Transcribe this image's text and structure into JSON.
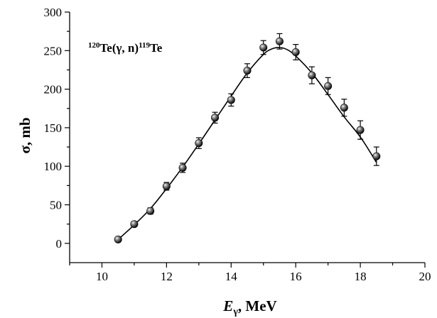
{
  "chart_data": {
    "type": "scatter",
    "annotation": {
      "mass_target": "120",
      "reaction": "Te(γ, n)",
      "mass_product": "119",
      "product": "Te"
    },
    "xlabel": {
      "symbol": "E",
      "subscript": "γ",
      "unit": ", MeV"
    },
    "ylabel": "σ, mb",
    "xlim": [
      9,
      20
    ],
    "ylim": [
      -25,
      300
    ],
    "x_ticks": [
      "10",
      "12",
      "14",
      "16",
      "18",
      "20"
    ],
    "y_ticks": [
      "0",
      "50",
      "100",
      "150",
      "200",
      "250",
      "300"
    ],
    "grid": false,
    "series": [
      {
        "marker": "sphere",
        "points": [
          {
            "x": 10.5,
            "y": 5,
            "err": 0
          },
          {
            "x": 11.0,
            "y": 25,
            "err": 0
          },
          {
            "x": 11.5,
            "y": 42,
            "err": 4
          },
          {
            "x": 12.0,
            "y": 74,
            "err": 5
          },
          {
            "x": 12.5,
            "y": 98,
            "err": 6
          },
          {
            "x": 13.0,
            "y": 130,
            "err": 7
          },
          {
            "x": 13.5,
            "y": 163,
            "err": 7
          },
          {
            "x": 14.0,
            "y": 186,
            "err": 8
          },
          {
            "x": 14.5,
            "y": 224,
            "err": 9
          },
          {
            "x": 15.0,
            "y": 254,
            "err": 9
          },
          {
            "x": 15.5,
            "y": 262,
            "err": 10
          },
          {
            "x": 16.0,
            "y": 248,
            "err": 10
          },
          {
            "x": 16.5,
            "y": 218,
            "err": 11
          },
          {
            "x": 17.0,
            "y": 204,
            "err": 11
          },
          {
            "x": 17.5,
            "y": 176,
            "err": 11
          },
          {
            "x": 18.0,
            "y": 147,
            "err": 12
          },
          {
            "x": 18.5,
            "y": 113,
            "err": 12
          }
        ]
      }
    ],
    "fit_curve": {
      "x": [
        10.5,
        11.0,
        11.5,
        12.0,
        12.5,
        13.0,
        13.5,
        14.0,
        14.5,
        15.0,
        15.25,
        15.5,
        15.75,
        16.0,
        16.5,
        17.0,
        17.5,
        18.0,
        18.5
      ],
      "y": [
        5,
        24,
        45,
        71,
        99,
        129,
        160,
        191,
        221,
        245,
        252,
        254,
        251,
        243,
        221,
        193,
        164,
        138,
        105
      ]
    }
  }
}
